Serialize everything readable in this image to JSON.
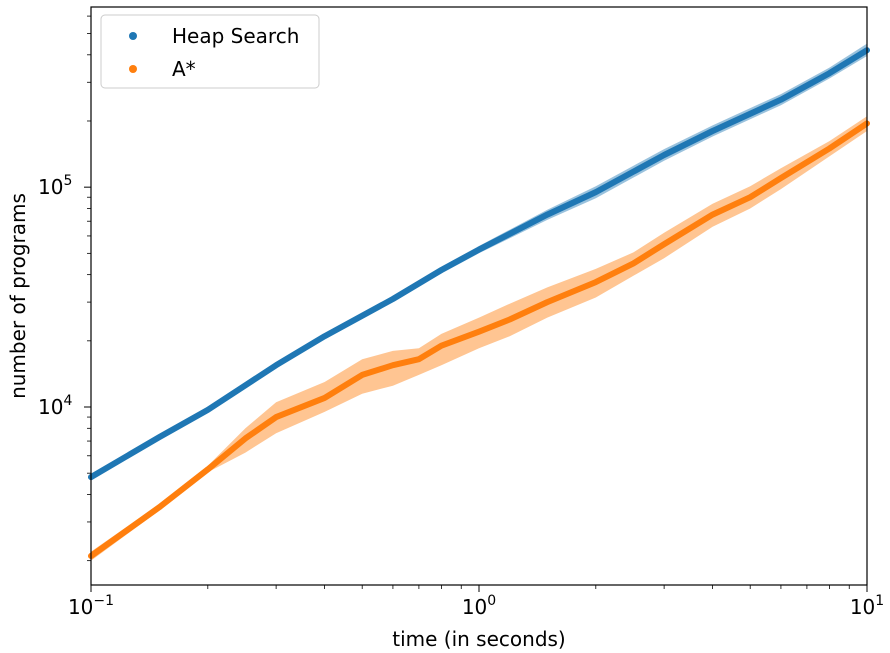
{
  "chart_data": {
    "type": "line",
    "title": "",
    "xlabel": "time (in seconds)",
    "ylabel": "number of programs",
    "xscale": "log",
    "yscale": "log",
    "xlim": [
      0.1,
      10
    ],
    "ylim": [
      1550,
      660000
    ],
    "x_ticks": [
      {
        "value": 0.1,
        "base": "10",
        "exp": "−1"
      },
      {
        "value": 1,
        "base": "10",
        "exp": "0"
      },
      {
        "value": 10,
        "base": "10",
        "exp": "1"
      }
    ],
    "y_ticks": [
      {
        "value": 10000,
        "base": "10",
        "exp": "4"
      },
      {
        "value": 100000,
        "base": "10",
        "exp": "5"
      }
    ],
    "grid": false,
    "legend": "top-left",
    "series": [
      {
        "name": "Heap Search",
        "color": "#1f77b4",
        "points": [
          [
            0.1,
            4800,
            4700,
            4900
          ],
          [
            0.15,
            7300,
            7200,
            7400
          ],
          [
            0.2,
            9700,
            9550,
            9850
          ],
          [
            0.3,
            15500,
            15300,
            15700
          ],
          [
            0.4,
            21000,
            20700,
            21400
          ],
          [
            0.6,
            31000,
            30500,
            31500
          ],
          [
            0.8,
            42000,
            40500,
            43500
          ],
          [
            1.0,
            52000,
            50000,
            54000
          ],
          [
            1.5,
            75000,
            71000,
            79000
          ],
          [
            2.0,
            95000,
            89000,
            101000
          ],
          [
            3.0,
            140000,
            132000,
            149000
          ],
          [
            4.0,
            180000,
            170000,
            191000
          ],
          [
            6.0,
            250000,
            236000,
            265000
          ],
          [
            8.0,
            330000,
            312000,
            350000
          ],
          [
            10.0,
            420000,
            395000,
            450000
          ]
        ]
      },
      {
        "name": "A*",
        "color": "#ff7f0e",
        "points": [
          [
            0.1,
            2100,
            2000,
            2200
          ],
          [
            0.15,
            3500,
            3380,
            3620
          ],
          [
            0.2,
            5200,
            5050,
            5400
          ],
          [
            0.25,
            7200,
            6200,
            8000
          ],
          [
            0.3,
            9000,
            7600,
            10500
          ],
          [
            0.4,
            11000,
            9500,
            13000
          ],
          [
            0.5,
            14000,
            11500,
            16500
          ],
          [
            0.6,
            15500,
            12500,
            18000
          ],
          [
            0.7,
            16500,
            14000,
            18500
          ],
          [
            0.8,
            19000,
            15500,
            21500
          ],
          [
            1.0,
            22000,
            18500,
            25500
          ],
          [
            1.2,
            25000,
            21000,
            29500
          ],
          [
            1.5,
            30000,
            25500,
            35000
          ],
          [
            2.0,
            37000,
            31500,
            42500
          ],
          [
            2.5,
            45000,
            39500,
            50500
          ],
          [
            3.0,
            55000,
            47500,
            62000
          ],
          [
            4.0,
            75000,
            66000,
            84000
          ],
          [
            5.0,
            90000,
            80000,
            101000
          ],
          [
            6.0,
            110000,
            98000,
            122000
          ],
          [
            8.0,
            150000,
            138000,
            162000
          ],
          [
            10.0,
            195000,
            180000,
            210000
          ]
        ]
      }
    ]
  }
}
